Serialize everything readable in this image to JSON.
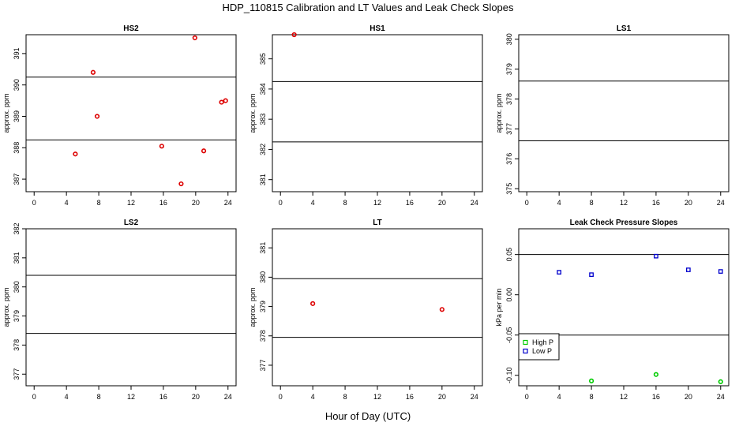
{
  "figure": {
    "title": "HDP_110815  Calibration and LT Values and Leak Check Slopes",
    "xlabel": "Hour of Day (UTC)"
  },
  "colors": {
    "high_p": "#00cc00",
    "low_p": "#0000cc",
    "points": "#dd0000"
  },
  "chart_data": [
    {
      "type": "scatter",
      "title": "HS2",
      "ylabel": "approx. ppm",
      "xlim": [
        -1,
        25
      ],
      "ylim": [
        386.6,
        391.6
      ],
      "xticks": [
        0,
        4,
        8,
        12,
        16,
        20,
        24
      ],
      "yticks": [
        387,
        388,
        389,
        390,
        391
      ],
      "hlines": [
        390.25,
        388.25
      ],
      "series": [
        {
          "marker": "circle",
          "color": "#dd0000",
          "x": [
            5.1,
            7.3,
            7.8,
            15.8,
            18.2,
            19.9,
            21.0,
            23.2,
            23.7
          ],
          "y": [
            387.8,
            390.4,
            389.0,
            388.05,
            386.85,
            391.5,
            387.9,
            389.45,
            389.5
          ]
        }
      ]
    },
    {
      "type": "scatter",
      "title": "HS1",
      "ylabel": "approx. ppm",
      "xlim": [
        -1,
        25
      ],
      "ylim": [
        380.6,
        385.8
      ],
      "xticks": [
        0,
        4,
        8,
        12,
        16,
        20,
        24
      ],
      "yticks": [
        381,
        382,
        383,
        384,
        385
      ],
      "hlines": [
        384.25,
        382.25
      ],
      "series": [
        {
          "marker": "circle",
          "color": "#dd0000",
          "x": [
            1.7
          ],
          "y": [
            385.8
          ]
        }
      ]
    },
    {
      "type": "scatter",
      "title": "LS1",
      "ylabel": "approx. ppm",
      "xlim": [
        -1,
        25
      ],
      "ylim": [
        374.9,
        380.15
      ],
      "xticks": [
        0,
        4,
        8,
        12,
        16,
        20,
        24
      ],
      "yticks": [
        375,
        376,
        377,
        378,
        379,
        380
      ],
      "hlines": [
        378.6,
        376.6
      ],
      "series": []
    },
    {
      "type": "scatter",
      "title": "LS2",
      "ylabel": "approx. ppm",
      "xlim": [
        -1,
        25
      ],
      "ylim": [
        376.6,
        382.0
      ],
      "xticks": [
        0,
        4,
        8,
        12,
        16,
        20,
        24
      ],
      "yticks": [
        377,
        378,
        379,
        380,
        381,
        382
      ],
      "hlines": [
        380.4,
        378.4
      ],
      "series": []
    },
    {
      "type": "scatter",
      "title": "LT",
      "ylabel": "approx. ppm",
      "xlim": [
        -1,
        25
      ],
      "ylim": [
        376.3,
        381.65
      ],
      "xticks": [
        0,
        4,
        8,
        12,
        16,
        20,
        24
      ],
      "yticks": [
        377,
        378,
        379,
        380,
        381
      ],
      "hlines": [
        379.95,
        377.95
      ],
      "series": [
        {
          "marker": "circle",
          "color": "#dd0000",
          "x": [
            4.0,
            20.0
          ],
          "y": [
            379.1,
            378.9
          ]
        }
      ]
    },
    {
      "type": "scatter",
      "title": "Leak Check Pressure Slopes",
      "ylabel": "kPa per min",
      "xlim": [
        -1,
        25
      ],
      "ylim": [
        -0.113,
        0.082
      ],
      "xticks": [
        0,
        4,
        8,
        12,
        16,
        20,
        24
      ],
      "yticks": [
        -0.1,
        -0.05,
        0.0,
        0.05
      ],
      "ytick_labels": [
        "-0.10",
        "-0.05",
        "0.00",
        "0.05"
      ],
      "hlines": [
        0.05,
        -0.05
      ],
      "legend": {
        "position": "bottom-left",
        "entries": [
          "High P",
          "Low P"
        ]
      },
      "series": [
        {
          "name": "High P",
          "marker": "circle",
          "color": "#00cc00",
          "x": [
            8,
            16,
            24
          ],
          "y": [
            -0.107,
            -0.099,
            -0.108
          ]
        },
        {
          "name": "Low P",
          "marker": "square",
          "color": "#0000cc",
          "x": [
            4,
            8,
            16,
            20,
            24
          ],
          "y": [
            0.028,
            0.025,
            0.048,
            0.031,
            0.029
          ]
        }
      ]
    }
  ]
}
